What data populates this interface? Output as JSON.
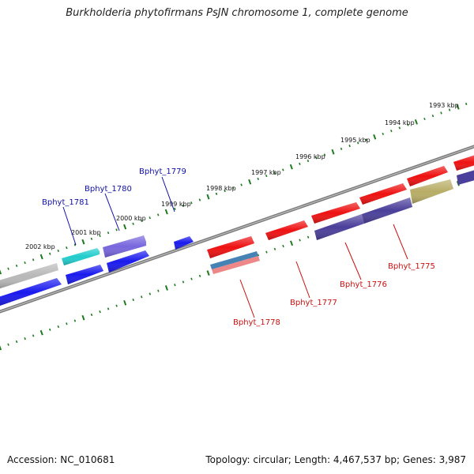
{
  "title": "Burkholderia phytofirmans PsJN chromosome 1, complete genome",
  "footer": {
    "accession": "Accession: NC_010681",
    "topology": "Topology: circular; Length: 4,467,537 bp; Genes: 3,987"
  },
  "colors": {
    "backbone": "#7a7a7a",
    "tick": "#1e7a1e",
    "forward_label": "#1010aa",
    "reverse_label": "#cc1010"
  },
  "scale_labels": [
    "1993 kbp",
    "1994 kbp",
    "1995 kbp",
    "1996 kbp",
    "1997 kbp",
    "1998 kbp",
    "1999 kbp",
    "2000 kbp",
    "2001 kbp",
    "2002 kbp"
  ],
  "gene_labels": [
    {
      "text": "Bphyt_1779",
      "strand": "forward"
    },
    {
      "text": "Bphyt_1780",
      "strand": "forward"
    },
    {
      "text": "Bphyt_1781",
      "strand": "forward"
    },
    {
      "text": "Bphyt_1775",
      "strand": "reverse"
    },
    {
      "text": "Bphyt_1776",
      "strand": "reverse"
    },
    {
      "text": "Bphyt_1777",
      "strand": "reverse"
    },
    {
      "text": "Bphyt_1778",
      "strand": "reverse"
    }
  ],
  "features": [
    {
      "name": "gene-gray-forward",
      "color": "#b8b8b8"
    },
    {
      "name": "gene-cyan-forward",
      "color": "#22cccc"
    },
    {
      "name": "gene-slateblue-forward",
      "color": "#7766dd"
    },
    {
      "name": "gene-blue-forward-small",
      "color": "#1a1aee"
    },
    {
      "name": "gene-red-forward",
      "color": "#ee1111"
    },
    {
      "name": "gene-blue-cds",
      "color": "#1a1aee"
    },
    {
      "name": "gene-navy-cds",
      "color": "#4a3f9a"
    },
    {
      "name": "gene-olive-cds",
      "color": "#b8ad66"
    },
    {
      "name": "gene-steelblue-cds",
      "color": "#4682b4"
    },
    {
      "name": "gene-pink-cds",
      "color": "#ee8888"
    }
  ]
}
